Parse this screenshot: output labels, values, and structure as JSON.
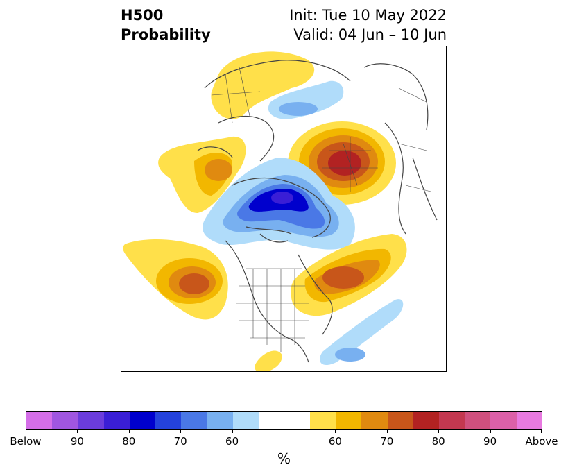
{
  "title": {
    "left_line1": "H500",
    "left_line2": "Probability",
    "right_line1": "Init: Tue 10 May 2022",
    "right_line2": "Valid: 04 Jun – 10 Jun"
  },
  "colorbar": {
    "colors": [
      "#d46ee8",
      "#a056e0",
      "#6b3cdc",
      "#3a1ed6",
      "#0000cd",
      "#2442dc",
      "#4a78e6",
      "#78b0f0",
      "#b0dcfa",
      "#ffffff",
      "#ffe04a",
      "#f2b700",
      "#e08a10",
      "#c8561a",
      "#b22222",
      "#c43850",
      "#d0507e",
      "#dc60a8",
      "#e87ae0"
    ],
    "tick_labels": [
      "Below",
      "90",
      "80",
      "70",
      "60",
      "60",
      "70",
      "80",
      "90",
      "Above"
    ],
    "unit": "%"
  },
  "map": {
    "features": [
      "above-normal-probability-east-asia",
      "above-normal-probability-north-pacific",
      "above-normal-probability-north-atlantic",
      "below-normal-probability-arctic",
      "below-normal-probability-western-atlantic"
    ],
    "boundary_color": "#444444"
  }
}
